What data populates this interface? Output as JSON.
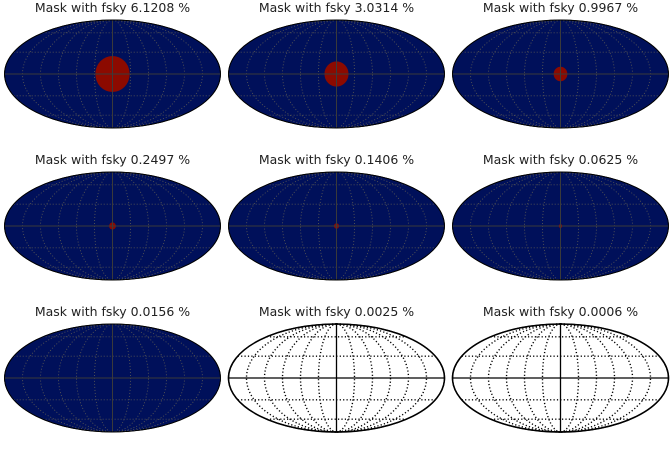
{
  "colors": {
    "map_fill": "#00105a",
    "mask_fill": "#8c0a00",
    "grid_dark": "#555555",
    "empty_fill": "#ffffff",
    "outline": "#000000"
  },
  "panels": [
    {
      "title": "Mask with fsky 6.1208 %",
      "fsky_percent": 6.1208,
      "style": "filled"
    },
    {
      "title": "Mask with fsky 3.0314 %",
      "fsky_percent": 3.0314,
      "style": "filled"
    },
    {
      "title": "Mask with fsky 0.9967 %",
      "fsky_percent": 0.9967,
      "style": "filled"
    },
    {
      "title": "Mask with fsky 0.2497 %",
      "fsky_percent": 0.2497,
      "style": "filled"
    },
    {
      "title": "Mask with fsky 0.1406 %",
      "fsky_percent": 0.1406,
      "style": "filled"
    },
    {
      "title": "Mask with fsky 0.0625 %",
      "fsky_percent": 0.0625,
      "style": "filled"
    },
    {
      "title": "Mask with fsky 0.0156 %",
      "fsky_percent": 0.0156,
      "style": "filled"
    },
    {
      "title": "Mask with fsky 0.0025 %",
      "fsky_percent": 0.0025,
      "style": "empty"
    },
    {
      "title": "Mask with fsky 0.0006 %",
      "fsky_percent": 0.0006,
      "style": "empty"
    }
  ]
}
